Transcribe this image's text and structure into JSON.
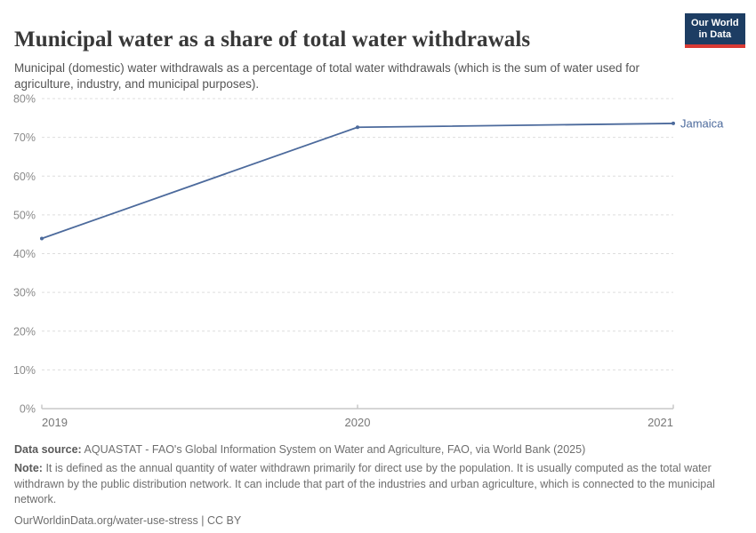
{
  "header": {
    "title": "Municipal water as a share of total water withdrawals",
    "subtitle": "Municipal (domestic) water withdrawals as a percentage of total water withdrawals (which is the sum of water used for agriculture, industry, and municipal purposes).",
    "logo": {
      "line1": "Our World",
      "line2": "in Data",
      "bg_color": "#1d3d63",
      "accent_color": "#d93a34"
    }
  },
  "chart_data": {
    "type": "line",
    "title": "Municipal water as a share of total water withdrawals",
    "x": [
      2019,
      2020,
      2021
    ],
    "series": [
      {
        "name": "Jamaica",
        "color": "#4c6a9c",
        "values": [
          43.9,
          72.6,
          73.6
        ]
      }
    ],
    "xlim": [
      2019,
      2021
    ],
    "ylim": [
      0,
      80
    ],
    "y_ticks": [
      0,
      10,
      20,
      30,
      40,
      50,
      60,
      70,
      80
    ],
    "y_tick_labels": [
      "0%",
      "10%",
      "20%",
      "30%",
      "40%",
      "50%",
      "60%",
      "70%",
      "80%"
    ],
    "x_ticks": [
      2019,
      2020,
      2021
    ],
    "x_tick_labels": [
      "2019",
      "2020",
      "2021"
    ],
    "grid": "dashed-horizontal",
    "legend_position": "end-of-line-label",
    "unit": "%"
  },
  "footer": {
    "source_label": "Data source:",
    "source_text": "AQUASTAT - FAO's Global Information System on Water and Agriculture, FAO, via World Bank (2025)",
    "note_label": "Note:",
    "note_text": "It is defined as the annual quantity of water withdrawn primarily for direct use by the population. It is usually computed as the total water withdrawn by the public distribution network. It can include that part of the industries and urban agriculture, which is connected to the municipal network.",
    "link_text": "OurWorldinData.org/water-use-stress | CC BY"
  },
  "colors": {
    "line": "#4c6a9c",
    "gridline": "#dddddd",
    "axis": "#c8c8c8",
    "y_tick_text": "#8a8a8a",
    "x_tick_text": "#777777",
    "title_text": "#383838",
    "subtitle_text": "#555555",
    "footer_text": "#6e6e6e"
  }
}
